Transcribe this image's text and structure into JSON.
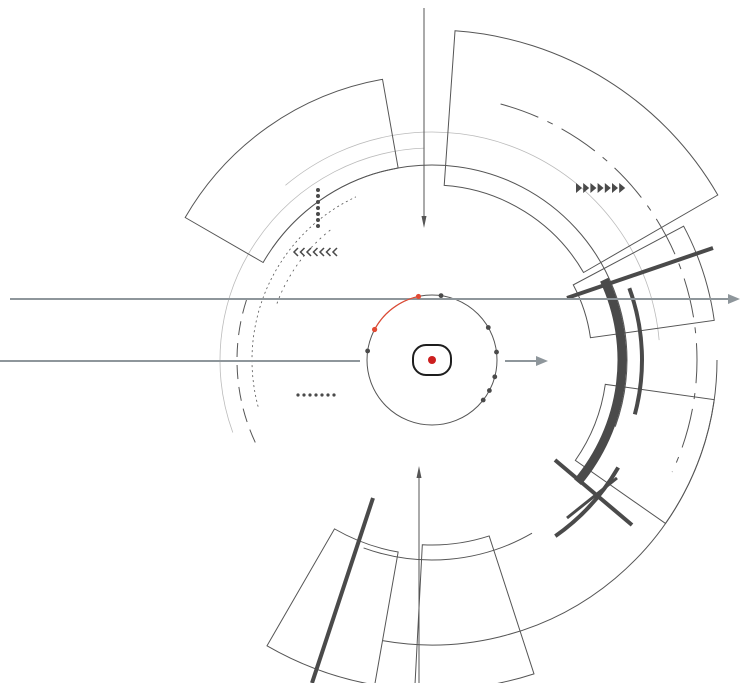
{
  "colors": {
    "line": "#555555",
    "light_line": "#bbbbbb",
    "dark": "#4a4a4a",
    "arrow_grey": "#8e969b",
    "accent_red": "#e24a33",
    "center_red": "#cc1f1f"
  },
  "markers": {
    "right_triangles": 7,
    "left_chevrons": 7,
    "vertical_dots": 7,
    "horizontal_dots": 7
  }
}
